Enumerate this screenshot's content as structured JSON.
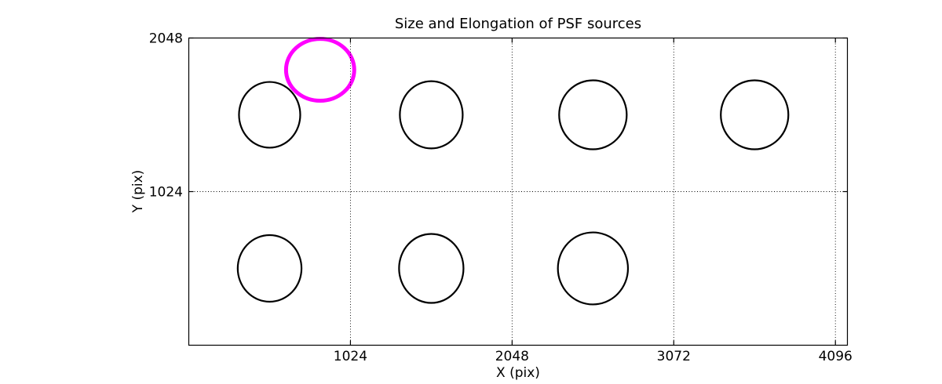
{
  "chart_data": {
    "type": "scatter",
    "marker": "ellipse-outline",
    "title": "Size and Elongation of PSF sources",
    "xlabel": "X (pix)",
    "ylabel": "Y (pix)",
    "xlim": [
      0,
      4172
    ],
    "ylim": [
      0,
      2048
    ],
    "xticks": [
      1024,
      2048,
      3072,
      4096
    ],
    "yticks": [
      1024,
      2048
    ],
    "grid": {
      "style": "dotted",
      "color": "#000000",
      "lines_x": [
        1024,
        2048,
        3072,
        4096
      ],
      "lines_y": [
        1024
      ]
    },
    "axis_color": "#000000",
    "background_color": "#ffffff",
    "source_color": "#000000",
    "highlight_color": "#FF00FF",
    "sources": [
      {
        "x": 512,
        "y": 1536,
        "rx": 194,
        "ry": 219,
        "color": "#000000",
        "line_width": 2.2,
        "highlighted": false
      },
      {
        "x": 1536,
        "y": 1536,
        "rx": 199,
        "ry": 224,
        "color": "#000000",
        "line_width": 2.2,
        "highlighted": false
      },
      {
        "x": 2560,
        "y": 1536,
        "rx": 214,
        "ry": 230,
        "color": "#000000",
        "line_width": 2.2,
        "highlighted": false
      },
      {
        "x": 3584,
        "y": 1536,
        "rx": 214,
        "ry": 230,
        "color": "#000000",
        "line_width": 2.2,
        "highlighted": false
      },
      {
        "x": 512,
        "y": 512,
        "rx": 202,
        "ry": 222,
        "color": "#000000",
        "line_width": 2.2,
        "highlighted": false
      },
      {
        "x": 1536,
        "y": 512,
        "rx": 204,
        "ry": 230,
        "color": "#000000",
        "line_width": 2.2,
        "highlighted": false
      },
      {
        "x": 2560,
        "y": 512,
        "rx": 222,
        "ry": 240,
        "color": "#000000",
        "line_width": 2.2,
        "highlighted": false
      },
      {
        "x": 832,
        "y": 1836,
        "rx": 216,
        "ry": 206,
        "color": "#FF00FF",
        "line_width": 5,
        "highlighted": true
      }
    ]
  }
}
